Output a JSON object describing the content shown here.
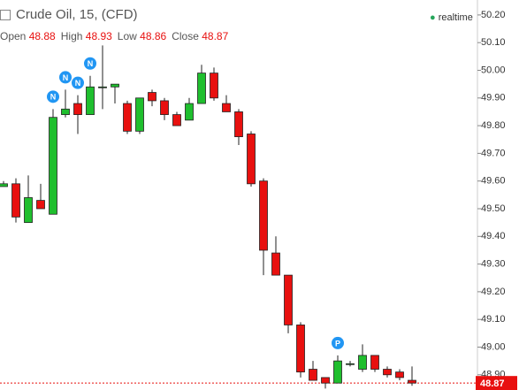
{
  "chart_data": {
    "type": "candlestick",
    "title": "Crude Oil, 15, (CFD)",
    "status": "realtime",
    "ohlc_labels": [
      "Open",
      "High",
      "Low",
      "Close"
    ],
    "up_color": "#1fbf2e",
    "down_color": "#e8100f",
    "open": [
      49.58,
      49.59,
      49.45,
      49.53,
      49.48,
      49.84,
      49.88,
      49.84,
      49.94,
      49.94,
      49.88,
      49.78,
      49.92,
      49.89,
      49.84,
      49.82,
      49.88,
      49.99,
      49.88,
      49.85,
      49.77,
      49.6,
      49.34,
      49.26,
      49.08,
      48.92,
      48.89,
      48.87,
      48.94,
      48.92,
      48.97,
      48.92,
      48.91,
      48.88
    ],
    "high": [
      49.6,
      49.61,
      49.62,
      49.59,
      49.86,
      49.93,
      49.91,
      49.98,
      50.09,
      49.95,
      49.89,
      49.9,
      49.93,
      49.9,
      49.85,
      49.9,
      50.02,
      50.01,
      49.91,
      49.86,
      49.78,
      49.61,
      49.4,
      49.26,
      49.09,
      48.95,
      48.89,
      48.97,
      48.95,
      49.01,
      48.97,
      48.93,
      48.92,
      48.93
    ],
    "low": [
      49.58,
      49.45,
      49.45,
      49.5,
      49.48,
      49.83,
      49.77,
      49.84,
      49.86,
      49.88,
      49.77,
      49.77,
      49.87,
      49.82,
      49.8,
      49.82,
      49.88,
      49.89,
      49.85,
      49.73,
      49.58,
      49.26,
      49.26,
      49.05,
      48.89,
      48.88,
      48.85,
      48.87,
      48.93,
      48.91,
      48.91,
      48.89,
      48.88,
      48.86
    ],
    "close": [
      49.59,
      49.47,
      49.54,
      49.5,
      49.83,
      49.86,
      49.84,
      49.94,
      49.94,
      49.95,
      49.78,
      49.9,
      49.89,
      49.84,
      49.8,
      49.88,
      49.99,
      49.9,
      49.85,
      49.76,
      49.59,
      49.35,
      49.26,
      49.08,
      48.91,
      48.88,
      48.87,
      48.95,
      48.94,
      48.97,
      48.92,
      48.9,
      48.89,
      48.87
    ],
    "event_markers": [
      {
        "index": 4,
        "label": "N"
      },
      {
        "index": 5,
        "label": "N"
      },
      {
        "index": 6,
        "label": "N"
      },
      {
        "index": 7,
        "label": "N"
      },
      {
        "index": 27,
        "label": "P"
      }
    ],
    "marker_color": "#2196f3",
    "last_price": 48.87,
    "ylim": [
      48.845,
      50.254
    ],
    "yticks": [
      {
        "value": 50.2,
        "label": "50.20"
      },
      {
        "value": 50.1,
        "label": "50.10"
      },
      {
        "value": 50.0,
        "label": "50.00"
      },
      {
        "value": 49.9,
        "label": "49.90"
      },
      {
        "value": 49.8,
        "label": "49.80"
      },
      {
        "value": 49.7,
        "label": "49.70"
      },
      {
        "value": 49.6,
        "label": "49.60"
      },
      {
        "value": 49.5,
        "label": "49.50"
      },
      {
        "value": 49.4,
        "label": "49.40"
      },
      {
        "value": 49.3,
        "label": "49.30"
      },
      {
        "value": 49.2,
        "label": "49.20"
      },
      {
        "value": 49.1,
        "label": "49.10"
      },
      {
        "value": 49.0,
        "label": "49.00"
      },
      {
        "value": 48.9,
        "label": "48.90"
      }
    ]
  }
}
